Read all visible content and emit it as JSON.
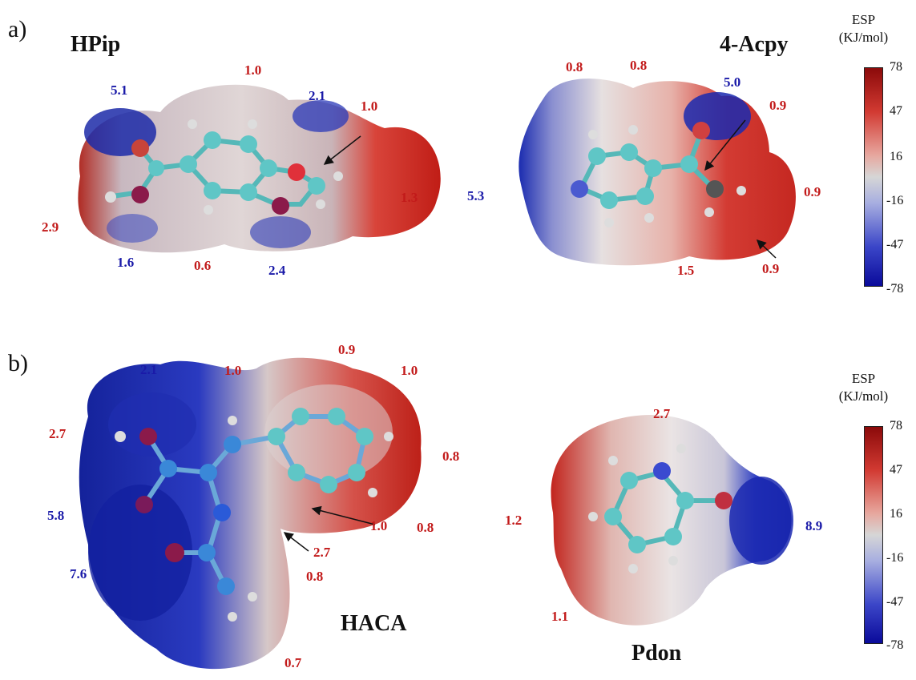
{
  "panel_a": {
    "label": "a)",
    "molecules": [
      {
        "name": "HPip",
        "values": [
          "1.0",
          "5.1",
          "2.1",
          "1.0",
          "1.3",
          "2.9",
          "1.6",
          "0.6",
          "2.4"
        ]
      },
      {
        "name": "4-Acpy",
        "values": [
          "0.8",
          "0.8",
          "5.0",
          "0.9",
          "5.3",
          "0.9",
          "1.5",
          "0.9"
        ]
      }
    ],
    "colorbar": {
      "title_line1": "ESP",
      "title_line2": "(KJ/mol)",
      "ticks": [
        "78",
        "47",
        "16",
        "-16",
        "-47",
        "-78"
      ]
    }
  },
  "panel_b": {
    "label": "b)",
    "molecules": [
      {
        "name": "HACA",
        "values": [
          "2.1",
          "1.0",
          "0.9",
          "1.0",
          "2.7",
          "0.8",
          "5.8",
          "0.8",
          "1.0",
          "2.7",
          "7.6",
          "0.8",
          "0.7"
        ]
      },
      {
        "name": "Pdon",
        "values": [
          "2.7",
          "1.2",
          "8.9",
          "1.1"
        ]
      }
    ],
    "colorbar": {
      "title_line1": "ESP",
      "title_line2": "(KJ/mol)",
      "ticks": [
        "78",
        "47",
        "16",
        "-16",
        "-47",
        "-78"
      ]
    }
  },
  "colors": {
    "positive": "#c21a1a",
    "negative": "#1a1aa8"
  }
}
